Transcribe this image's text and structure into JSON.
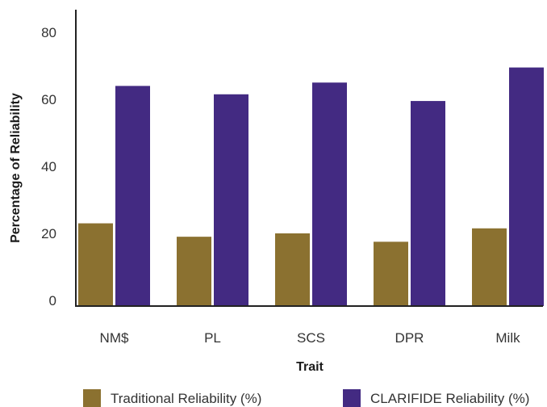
{
  "chart_data": {
    "type": "bar",
    "title": "",
    "xlabel": "Trait",
    "ylabel": "Percentage of Reliability",
    "categories": [
      "NM$",
      "PL",
      "SCS",
      "DPR",
      "Milk"
    ],
    "yticks": [
      "0",
      "20",
      "40",
      "60",
      "80"
    ],
    "ylim": [
      0,
      80
    ],
    "grid": false,
    "legend_position": "bottom",
    "series": [
      {
        "name": "Traditional Reliability (%)",
        "color": "#8B7130",
        "values": [
          23,
          19,
          20,
          17.5,
          21.5
        ]
      },
      {
        "name": "CLARIFIDE Reliability (%)",
        "color": "#432A82",
        "values": [
          64,
          61.5,
          65,
          59.5,
          69.5
        ]
      }
    ]
  }
}
